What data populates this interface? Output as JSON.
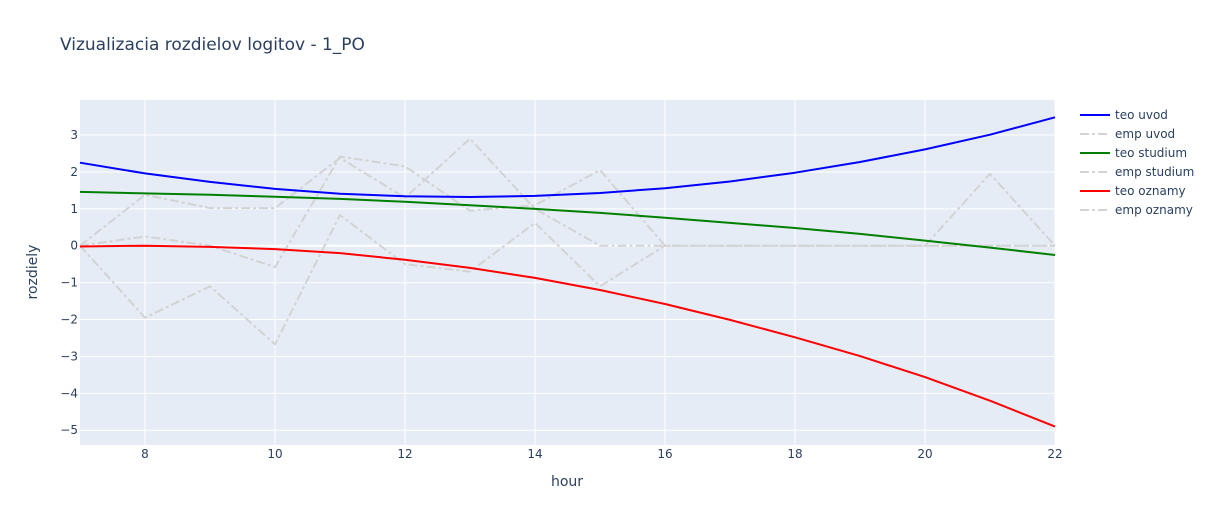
{
  "chart_data": {
    "type": "line",
    "title": "Vizualizacia rozdielov logitov - 1_PO",
    "xlabel": "hour",
    "ylabel": "rozdiely",
    "xlim": [
      7,
      22
    ],
    "ylim": [
      -5.4,
      3.95
    ],
    "xticks": [
      8,
      10,
      12,
      14,
      16,
      18,
      20,
      22
    ],
    "yticks": [
      3,
      2,
      1,
      0,
      -1,
      -2,
      -3,
      -4,
      -5
    ],
    "ytick_labels": [
      "3",
      "2",
      "1",
      "0",
      "−1",
      "−2",
      "−3",
      "−4",
      "−5"
    ],
    "grid": true,
    "legend_position": "top-right outside",
    "plot_bg": "#e5ecf6",
    "x": [
      7,
      8,
      9,
      10,
      11,
      12,
      13,
      14,
      15,
      16,
      17,
      18,
      19,
      20,
      21,
      22
    ],
    "series": [
      {
        "name": "teo uvod",
        "color": "#0000ff",
        "dash": "solid",
        "values": [
          2.25,
          1.96,
          1.73,
          1.54,
          1.41,
          1.34,
          1.32,
          1.35,
          1.43,
          1.56,
          1.74,
          1.98,
          2.27,
          2.61,
          3.01,
          3.48
        ]
      },
      {
        "name": "emp uvod",
        "color": "#d3d3d3",
        "dash": "dashdot",
        "values": [
          0.0,
          0.25,
          0.0,
          -0.58,
          2.42,
          2.15,
          0.95,
          1.1,
          2.05,
          0.0,
          0.0,
          0.0,
          0.0,
          0.0,
          1.95,
          0.0
        ]
      },
      {
        "name": "teo studium",
        "color": "#008000",
        "dash": "solid",
        "values": [
          1.46,
          1.42,
          1.38,
          1.33,
          1.27,
          1.19,
          1.1,
          1.0,
          0.89,
          0.76,
          0.62,
          0.48,
          0.32,
          0.14,
          -0.05,
          -0.25
        ]
      },
      {
        "name": "emp studium",
        "color": "#d3d3d3",
        "dash": "dashdot",
        "values": [
          0.0,
          1.38,
          1.02,
          1.02,
          2.38,
          1.3,
          2.9,
          1.0,
          0.0,
          0.0,
          0.0,
          0.0,
          0.0,
          0.0,
          0.0,
          0.0
        ]
      },
      {
        "name": "teo oznamy",
        "color": "#ff0000",
        "dash": "solid",
        "values": [
          -0.02,
          0.0,
          -0.03,
          -0.09,
          -0.2,
          -0.38,
          -0.6,
          -0.87,
          -1.2,
          -1.58,
          -2.01,
          -2.48,
          -2.99,
          -3.56,
          -4.2,
          -4.9
        ]
      },
      {
        "name": "emp oznamy",
        "color": "#d3d3d3",
        "dash": "dashdot",
        "values": [
          0.0,
          -1.95,
          -1.1,
          -2.67,
          0.83,
          -0.5,
          -0.7,
          0.62,
          -1.1,
          0.0,
          0.0,
          0.0,
          0.0,
          0.0,
          0.0,
          0.0
        ]
      }
    ]
  }
}
